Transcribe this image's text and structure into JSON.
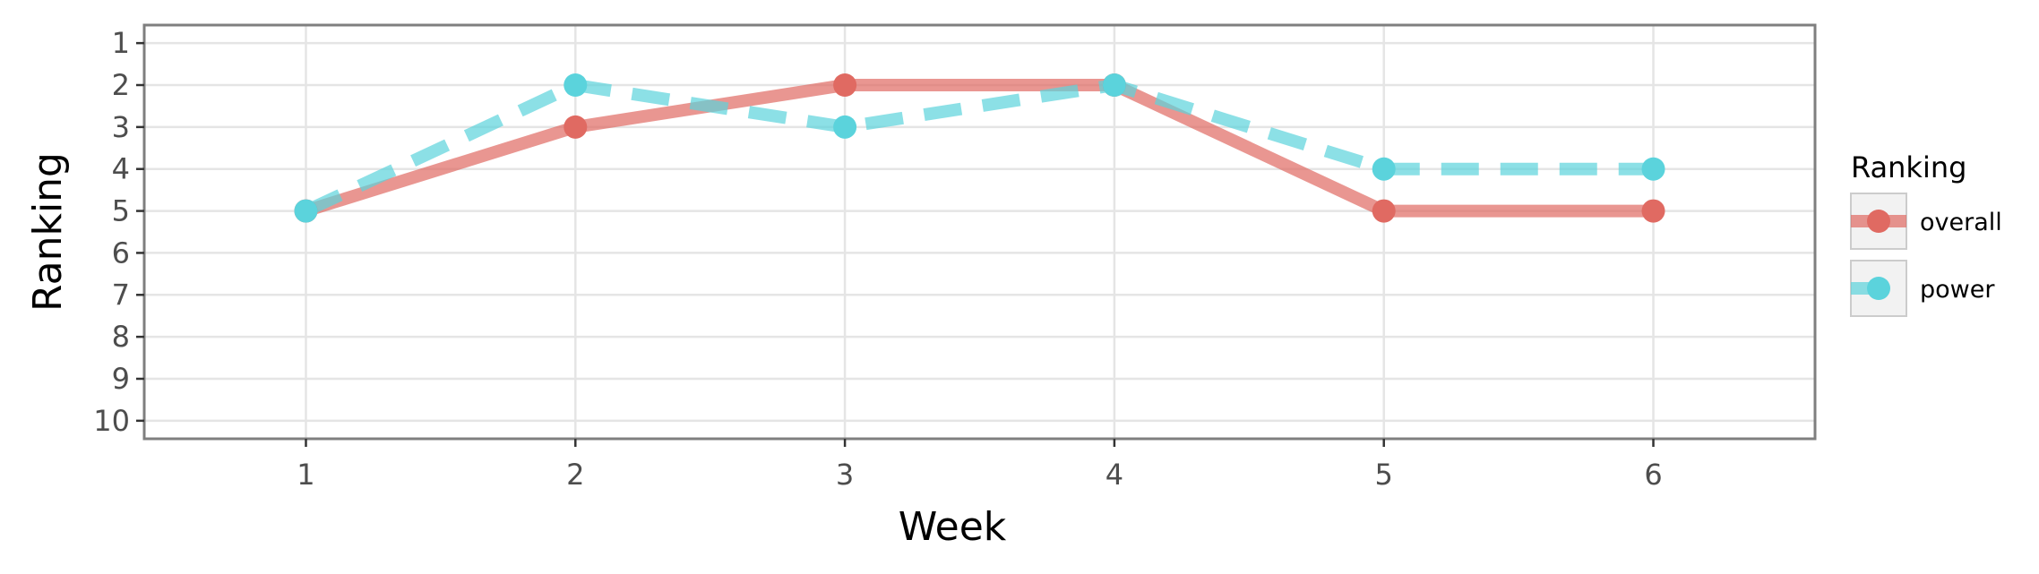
{
  "chart_data": {
    "type": "line",
    "x": [
      1,
      2,
      3,
      4,
      5,
      6
    ],
    "xlabel": "Week",
    "ylabel": "Ranking",
    "x_ticks": [
      "1",
      "2",
      "3",
      "4",
      "5",
      "6"
    ],
    "y_ticks": [
      "1",
      "2",
      "3",
      "4",
      "5",
      "6",
      "7",
      "8",
      "9",
      "10"
    ],
    "xlim": [
      0.4,
      6.6
    ],
    "ylim": [
      0.57,
      10.43
    ],
    "y_reversed": true,
    "grid": true,
    "legend_position": "right",
    "legend_title": "Ranking",
    "series": [
      {
        "name": "overall",
        "values": [
          5,
          3,
          2,
          2,
          5,
          5
        ],
        "color": "#e06a62",
        "line_style": "solid"
      },
      {
        "name": "power",
        "values": [
          5,
          2,
          3,
          2,
          4,
          4
        ],
        "color": "#5bd3dc",
        "line_style": "dashed"
      }
    ]
  }
}
